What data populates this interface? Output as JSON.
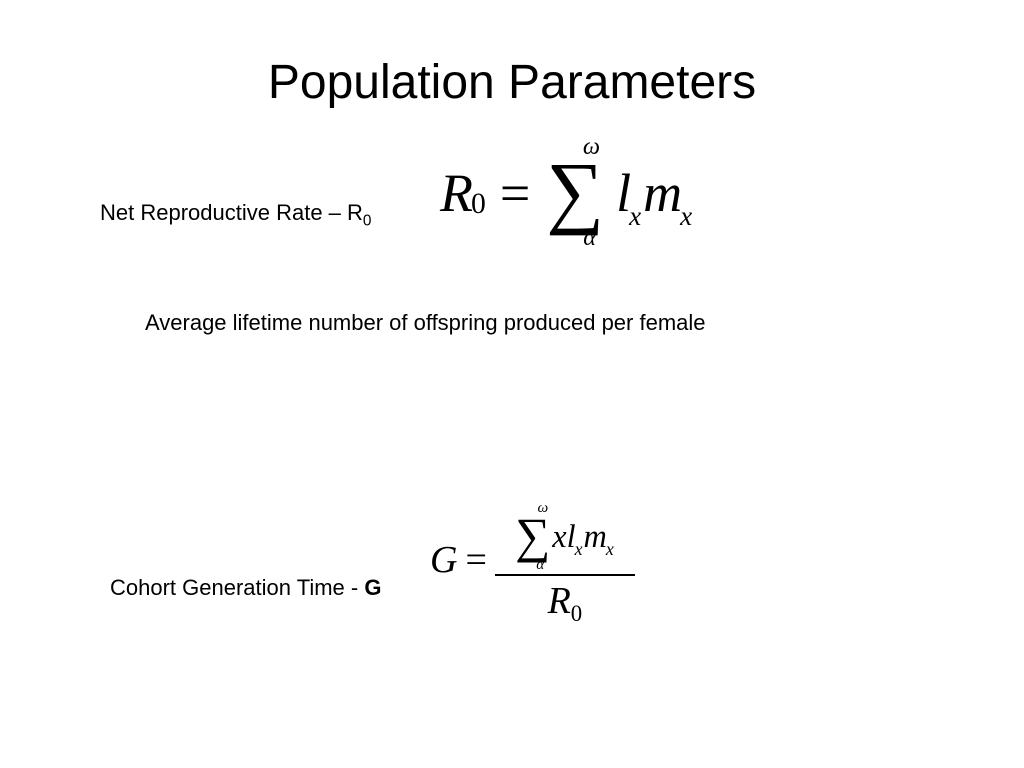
{
  "title": "Population Parameters",
  "section1": {
    "label_prefix": "Net Reproductive Rate – R",
    "label_sub": "0",
    "description": "Average lifetime number of offspring produced per female",
    "equation": {
      "lhs_var": "R",
      "lhs_sub": "0",
      "equals": "=",
      "sum_upper": "ω",
      "sum_symbol": "∑",
      "sum_lower": "α",
      "term1_var": "l",
      "term1_sub": "x",
      "term2_var": "m",
      "term2_sub": "x"
    }
  },
  "section2": {
    "label_prefix": "Cohort Generation Time - ",
    "label_bold": "G",
    "equation": {
      "lhs_var": "G",
      "equals": "=",
      "num_sum_upper": "ω",
      "num_sum_symbol": "∑",
      "num_sum_lower": "α",
      "num_x": "x",
      "num_l": "l",
      "num_l_sub": "x",
      "num_m": "m",
      "num_m_sub": "x",
      "den_var": "R",
      "den_sub": "0"
    }
  },
  "style": {
    "background": "#ffffff",
    "text_color": "#000000",
    "title_fontsize": 48,
    "label_fontsize": 22,
    "eq1_fontsize": 54,
    "eq2_fontsize": 38,
    "body_font": "Arial",
    "math_font": "Times New Roman"
  }
}
